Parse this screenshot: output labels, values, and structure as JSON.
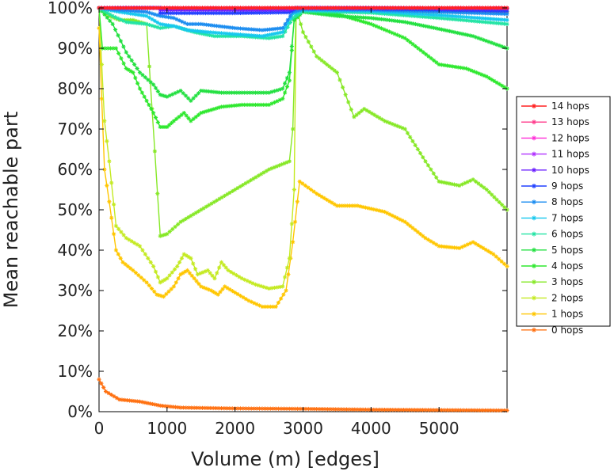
{
  "chart_data": {
    "type": "line",
    "title": "",
    "xlabel": "Volume (m) [edges]",
    "ylabel": "Mean reachable part",
    "xlim": [
      0,
      6000
    ],
    "ylim": [
      0,
      100
    ],
    "x_ticks": [
      "0",
      "1000",
      "2000",
      "3000",
      "4000",
      "5000"
    ],
    "y_ticks": [
      "0%",
      "10%",
      "20%",
      "30%",
      "40%",
      "50%",
      "60%",
      "70%",
      "80%",
      "90%",
      "100%"
    ],
    "grid": false,
    "legend_position": "right",
    "series": [
      {
        "name": "14 hops",
        "color": "#ff2020",
        "points": [
          [
            0,
            100
          ],
          [
            1000,
            100
          ],
          [
            2000,
            100
          ],
          [
            3000,
            100
          ],
          [
            4000,
            100
          ],
          [
            5000,
            100
          ],
          [
            6000,
            100
          ]
        ]
      },
      {
        "name": "13 hops",
        "color": "#ff3c8c",
        "points": [
          [
            0,
            100
          ],
          [
            1000,
            100
          ],
          [
            2000,
            100
          ],
          [
            3000,
            100
          ],
          [
            4000,
            100
          ],
          [
            5000,
            100
          ],
          [
            6000,
            100
          ]
        ]
      },
      {
        "name": "12 hops",
        "color": "#ff30d8",
        "points": [
          [
            0,
            100
          ],
          [
            1000,
            100
          ],
          [
            2000,
            100
          ],
          [
            3000,
            100
          ],
          [
            4000,
            100
          ],
          [
            5000,
            100
          ],
          [
            6000,
            100
          ]
        ]
      },
      {
        "name": "11 hops",
        "color": "#b030ff",
        "points": [
          [
            0,
            100
          ],
          [
            1000,
            100
          ],
          [
            2000,
            100
          ],
          [
            3000,
            100
          ],
          [
            4000,
            100
          ],
          [
            5000,
            100
          ],
          [
            6000,
            100
          ]
        ]
      },
      {
        "name": "10 hops",
        "color": "#6a1cff",
        "points": [
          [
            0,
            100
          ],
          [
            900,
            100
          ],
          [
            900,
            99.5
          ],
          [
            2800,
            99.5
          ],
          [
            2900,
            100
          ],
          [
            4800,
            100
          ],
          [
            5000,
            99.8
          ],
          [
            6000,
            99.8
          ]
        ]
      },
      {
        "name": "9 hops",
        "color": "#2040ff",
        "points": [
          [
            0,
            100
          ],
          [
            900,
            100
          ],
          [
            900,
            98.7
          ],
          [
            2000,
            98.7
          ],
          [
            2800,
            98.9
          ],
          [
            2900,
            100
          ],
          [
            4800,
            99.6
          ],
          [
            6000,
            99.2
          ]
        ]
      },
      {
        "name": "8 hops",
        "color": "#1a8cf0",
        "points": [
          [
            0,
            100
          ],
          [
            300,
            99.5
          ],
          [
            700,
            99
          ],
          [
            900,
            98
          ],
          [
            1100,
            97.5
          ],
          [
            1300,
            96
          ],
          [
            1500,
            96
          ],
          [
            2000,
            95
          ],
          [
            2400,
            94.5
          ],
          [
            2700,
            95
          ],
          [
            2850,
            99
          ],
          [
            3000,
            99.7
          ],
          [
            4000,
            99.5
          ],
          [
            5000,
            99
          ],
          [
            6000,
            98.5
          ]
        ]
      },
      {
        "name": "7 hops",
        "color": "#16c8ee",
        "points": [
          [
            0,
            100
          ],
          [
            300,
            99
          ],
          [
            700,
            98
          ],
          [
            900,
            96
          ],
          [
            1100,
            95.5
          ],
          [
            1300,
            94.5
          ],
          [
            1600,
            94
          ],
          [
            2000,
            93.5
          ],
          [
            2400,
            93
          ],
          [
            2700,
            94
          ],
          [
            2850,
            98.5
          ],
          [
            3000,
            99.5
          ],
          [
            4000,
            99.2
          ],
          [
            5000,
            98.2
          ],
          [
            6000,
            97
          ]
        ]
      },
      {
        "name": "6 hops",
        "color": "#22e4a4",
        "points": [
          [
            0,
            100
          ],
          [
            200,
            98
          ],
          [
            400,
            96.5
          ],
          [
            700,
            96
          ],
          [
            900,
            95
          ],
          [
            1100,
            95.5
          ],
          [
            1400,
            94
          ],
          [
            1700,
            93
          ],
          [
            2100,
            93
          ],
          [
            2500,
            92.5
          ],
          [
            2700,
            93
          ],
          [
            2850,
            97.5
          ],
          [
            3000,
            99.2
          ],
          [
            4000,
            98.8
          ],
          [
            5000,
            97.5
          ],
          [
            6000,
            96
          ]
        ]
      },
      {
        "name": "5 hops",
        "color": "#22e040",
        "points": [
          [
            0,
            100
          ],
          [
            200,
            96
          ],
          [
            400,
            89
          ],
          [
            600,
            84
          ],
          [
            800,
            81
          ],
          [
            900,
            78.5
          ],
          [
            1000,
            78
          ],
          [
            1200,
            79.5
          ],
          [
            1350,
            77
          ],
          [
            1500,
            79.5
          ],
          [
            1800,
            79
          ],
          [
            2100,
            79
          ],
          [
            2500,
            79
          ],
          [
            2700,
            80
          ],
          [
            2800,
            84
          ],
          [
            2870,
            97
          ],
          [
            3000,
            99
          ],
          [
            3500,
            98
          ],
          [
            4000,
            97.5
          ],
          [
            4500,
            96.5
          ],
          [
            5000,
            94.8
          ],
          [
            5500,
            93
          ],
          [
            6000,
            90
          ]
        ]
      },
      {
        "name": "4 hops",
        "color": "#2ee82e",
        "points": [
          [
            0,
            100
          ],
          [
            50,
            90
          ],
          [
            250,
            90
          ],
          [
            400,
            85
          ],
          [
            500,
            84
          ],
          [
            600,
            80
          ],
          [
            700,
            77
          ],
          [
            800,
            74
          ],
          [
            900,
            70.5
          ],
          [
            1000,
            70.5
          ],
          [
            1100,
            72
          ],
          [
            1250,
            74
          ],
          [
            1350,
            72
          ],
          [
            1500,
            74
          ],
          [
            1800,
            75.5
          ],
          [
            2100,
            76
          ],
          [
            2500,
            76
          ],
          [
            2700,
            77.5
          ],
          [
            2800,
            82
          ],
          [
            2870,
            97
          ],
          [
            2950,
            99.5
          ],
          [
            3100,
            99.5
          ],
          [
            3500,
            98.5
          ],
          [
            4000,
            96
          ],
          [
            4500,
            92.5
          ],
          [
            5000,
            86
          ],
          [
            5400,
            85
          ],
          [
            5700,
            83
          ],
          [
            6000,
            80
          ]
        ]
      },
      {
        "name": "3 hops",
        "color": "#86e826",
        "points": [
          [
            0,
            100
          ],
          [
            150,
            98
          ],
          [
            300,
            97
          ],
          [
            500,
            97
          ],
          [
            700,
            96
          ],
          [
            900,
            43.5
          ],
          [
            1000,
            44
          ],
          [
            1200,
            47
          ],
          [
            1500,
            50
          ],
          [
            2000,
            55
          ],
          [
            2500,
            60
          ],
          [
            2800,
            62
          ],
          [
            2850,
            70
          ],
          [
            2900,
            100
          ],
          [
            3000,
            94
          ],
          [
            3200,
            88
          ],
          [
            3500,
            84
          ],
          [
            3750,
            73
          ],
          [
            3900,
            75
          ],
          [
            4200,
            72
          ],
          [
            4500,
            70
          ],
          [
            4800,
            62
          ],
          [
            5000,
            57
          ],
          [
            5300,
            56
          ],
          [
            5500,
            57.5
          ],
          [
            5700,
            55
          ],
          [
            6000,
            50
          ]
        ]
      },
      {
        "name": "2 hops",
        "color": "#c4ea22",
        "points": [
          [
            0,
            100
          ],
          [
            80,
            72
          ],
          [
            150,
            62
          ],
          [
            250,
            46
          ],
          [
            400,
            43
          ],
          [
            600,
            41
          ],
          [
            800,
            36
          ],
          [
            900,
            32
          ],
          [
            1000,
            33
          ],
          [
            1150,
            36
          ],
          [
            1250,
            39
          ],
          [
            1350,
            38
          ],
          [
            1450,
            34
          ],
          [
            1600,
            35
          ],
          [
            1700,
            33
          ],
          [
            1800,
            37
          ],
          [
            1900,
            35
          ],
          [
            2100,
            33
          ],
          [
            2300,
            31.5
          ],
          [
            2500,
            30.5
          ],
          [
            2700,
            31
          ],
          [
            2800,
            38
          ],
          [
            2870,
            55
          ],
          [
            2900,
            100
          ],
          [
            3000,
            99.5
          ],
          [
            3500,
            99.5
          ],
          [
            4000,
            99.5
          ],
          [
            4500,
            99.5
          ],
          [
            5000,
            99
          ],
          [
            6000,
            99
          ]
        ]
      },
      {
        "name": "1 hops",
        "color": "#ffc600",
        "points": [
          [
            0,
            95
          ],
          [
            80,
            60
          ],
          [
            150,
            52
          ],
          [
            250,
            40
          ],
          [
            350,
            37
          ],
          [
            500,
            35
          ],
          [
            700,
            32
          ],
          [
            850,
            29
          ],
          [
            950,
            28.5
          ],
          [
            1100,
            31
          ],
          [
            1200,
            34
          ],
          [
            1300,
            35
          ],
          [
            1400,
            33
          ],
          [
            1500,
            31
          ],
          [
            1650,
            30
          ],
          [
            1750,
            29
          ],
          [
            1850,
            31
          ],
          [
            2000,
            29.5
          ],
          [
            2200,
            27.5
          ],
          [
            2400,
            26
          ],
          [
            2600,
            26
          ],
          [
            2750,
            30
          ],
          [
            2850,
            42
          ],
          [
            2950,
            57
          ],
          [
            3200,
            54
          ],
          [
            3500,
            51
          ],
          [
            3800,
            51
          ],
          [
            4200,
            49.5
          ],
          [
            4500,
            47
          ],
          [
            4800,
            43
          ],
          [
            5000,
            41
          ],
          [
            5300,
            40.5
          ],
          [
            5500,
            42
          ],
          [
            5800,
            39
          ],
          [
            6000,
            36
          ]
        ]
      },
      {
        "name": "0 hops",
        "color": "#ff7010",
        "points": [
          [
            0,
            8
          ],
          [
            100,
            5
          ],
          [
            300,
            3
          ],
          [
            600,
            2.5
          ],
          [
            900,
            1.5
          ],
          [
            1200,
            1
          ],
          [
            2000,
            0.8
          ],
          [
            3000,
            0.7
          ],
          [
            4000,
            0.5
          ],
          [
            5000,
            0.4
          ],
          [
            6000,
            0.3
          ]
        ]
      }
    ]
  }
}
